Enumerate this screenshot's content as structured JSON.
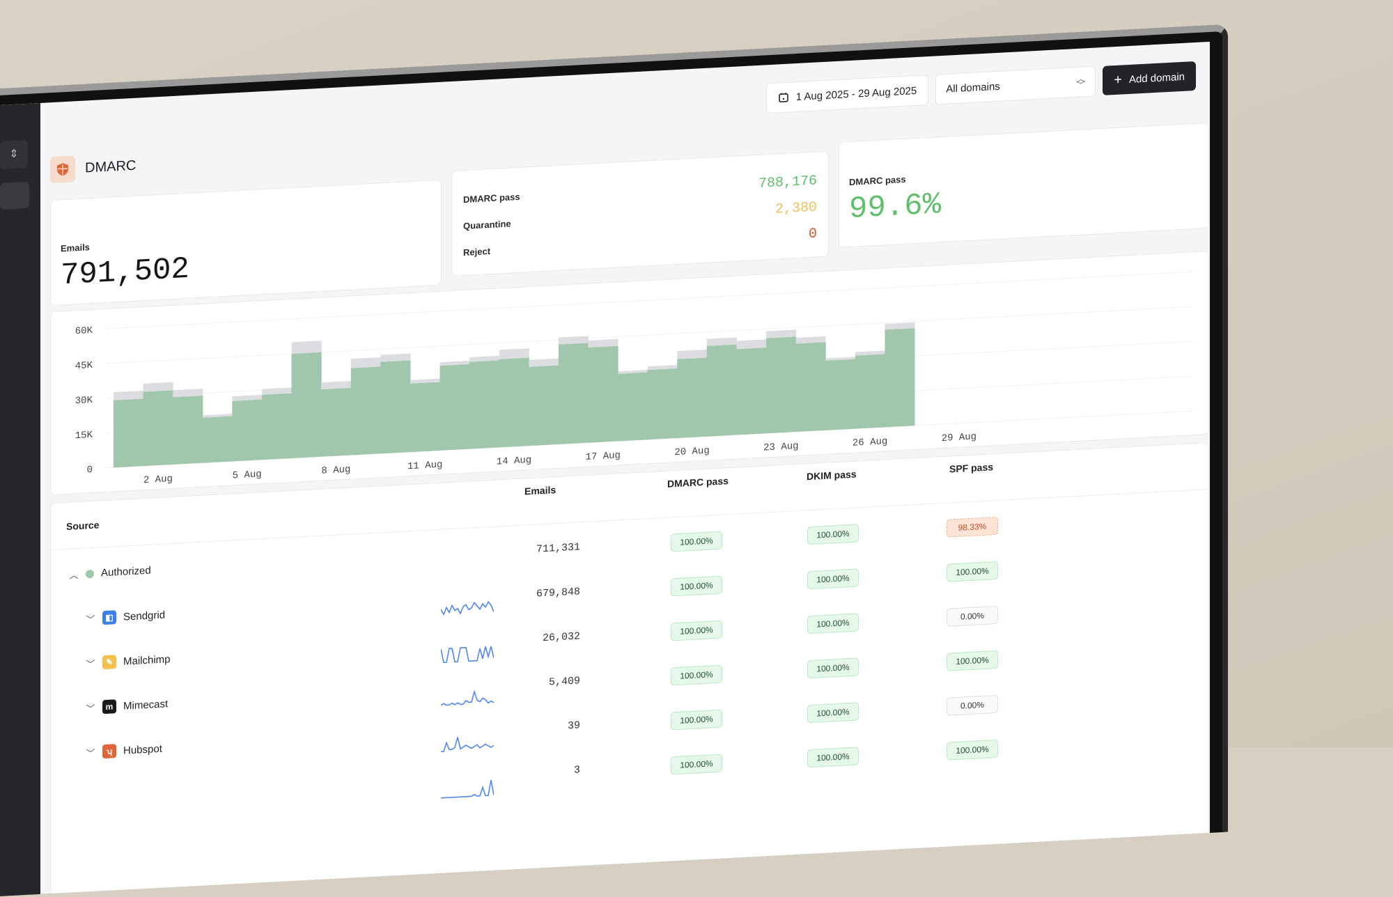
{
  "topbar": {
    "date_range": "1 Aug 2025 - 29 Aug 2025",
    "domain_select": "All domains",
    "add_domain": "Add domain"
  },
  "page": {
    "title": "DMARC",
    "icon": "shield-icon",
    "accent": "#e0663a"
  },
  "stats": {
    "emails_label": "Emails",
    "emails_value": "791,502",
    "disposition": [
      {
        "label": "DMARC pass",
        "value": "788,176",
        "color": "#5fbf6c"
      },
      {
        "label": "Quarantine",
        "value": "2,380",
        "color": "#f0c25a"
      },
      {
        "label": "Reject",
        "value": "0",
        "color": "#d9532c"
      }
    ],
    "pass_label": "DMARC pass",
    "pass_value": "99.6%",
    "pass_color": "#5fbf6c"
  },
  "chart_data": {
    "type": "bar",
    "stacked": true,
    "categories": [
      "1 Aug",
      "2 Aug",
      "3 Aug",
      "4 Aug",
      "5 Aug",
      "6 Aug",
      "7 Aug",
      "8 Aug",
      "9 Aug",
      "10 Aug",
      "11 Aug",
      "12 Aug",
      "13 Aug",
      "14 Aug",
      "15 Aug",
      "16 Aug",
      "17 Aug",
      "18 Aug",
      "19 Aug",
      "20 Aug",
      "21 Aug",
      "22 Aug",
      "23 Aug",
      "24 Aug",
      "25 Aug",
      "26 Aug",
      "27 Aug"
    ],
    "x_tick_labels": [
      "2 Aug",
      "5 Aug",
      "8 Aug",
      "11 Aug",
      "14 Aug",
      "17 Aug",
      "20 Aug",
      "23 Aug",
      "26 Aug",
      "29 Aug"
    ],
    "y_tick_labels": [
      "0",
      "15K",
      "30K",
      "45K",
      "60K"
    ],
    "ylim": [
      0,
      60000
    ],
    "grid": true,
    "series": [
      {
        "values": [
          29000,
          32000,
          29000,
          19500,
          26000,
          28000,
          45000,
          29000,
          37500,
          39500,
          29500,
          36500,
          37500,
          38000,
          34000,
          43000,
          41000,
          29000,
          30000,
          34000,
          39000,
          37000,
          41000,
          38000,
          30000,
          31500,
          42000
        ],
        "color": "#a0c6ab"
      },
      {
        "values": [
          3500,
          3500,
          3000,
          1000,
          2000,
          2500,
          5000,
          3000,
          4000,
          3000,
          1500,
          1500,
          2000,
          4000,
          3000,
          3000,
          3000,
          1000,
          1500,
          3500,
          3000,
          3500,
          3000,
          2500,
          1000,
          1500,
          2500
        ],
        "color": "#dcdde0"
      }
    ]
  },
  "table": {
    "headers": {
      "source": "Source",
      "emails": "Emails",
      "dmarc": "DMARC pass",
      "dkim": "DKIM pass",
      "spf": "SPF pass"
    },
    "rows": [
      {
        "name": "Authorized",
        "icon": "green-dot-icon",
        "expanded": true,
        "emails": "711,331",
        "dmarc": "100.00%",
        "dkim": "100.00%",
        "spf": "98.33%",
        "spf_status": "red",
        "spark": []
      },
      {
        "name": "Sendgrid",
        "icon": "sendgrid-icon",
        "emails": "679,848",
        "dmarc": "100.00%",
        "dkim": "100.00%",
        "spf": "100.00%",
        "spf_status": "green",
        "spark": [
          6,
          3,
          7,
          4,
          8,
          5,
          6,
          3,
          7,
          8,
          5,
          6,
          9,
          7,
          5,
          8,
          6,
          9,
          7,
          3
        ]
      },
      {
        "name": "Mailchimp",
        "icon": "mailchimp-icon",
        "emails": "26,032",
        "dmarc": "100.00%",
        "dkim": "100.00%",
        "spf": "0.00%",
        "spf_status": "gray",
        "spark": [
          9,
          1,
          1,
          9,
          9,
          1,
          1,
          9,
          9,
          9,
          1,
          1,
          1,
          1,
          8,
          2,
          9,
          3,
          9,
          2
        ]
      },
      {
        "name": "Mimecast",
        "icon": "mimecast-icon",
        "emails": "5,409",
        "dmarc": "100.00%",
        "dkim": "100.00%",
        "spf": "100.00%",
        "spf_status": "green",
        "spark": [
          2,
          3,
          2,
          2,
          3,
          2,
          3,
          2,
          2,
          4,
          3,
          3,
          9,
          4,
          3,
          5,
          4,
          2,
          3,
          2
        ]
      },
      {
        "name": "Hubspot",
        "icon": "hubspot-icon",
        "emails": "39",
        "dmarc": "100.00%",
        "dkim": "100.00%",
        "spf": "0.00%",
        "spf_status": "gray",
        "spark": [
          1,
          1,
          6,
          2,
          2,
          3,
          9,
          2,
          3,
          4,
          3,
          2,
          3,
          4,
          2,
          3,
          4,
          3,
          2,
          3
        ]
      },
      {
        "name": "",
        "icon": "",
        "emails": "3",
        "dmarc": "100.00%",
        "dkim": "100.00%",
        "spf": "100.00%",
        "spf_status": "green",
        "spark": [
          0,
          0,
          0,
          0,
          0,
          0,
          0,
          0,
          0,
          0,
          0,
          0,
          1,
          0,
          0,
          5,
          0,
          0,
          9,
          0
        ]
      }
    ]
  }
}
